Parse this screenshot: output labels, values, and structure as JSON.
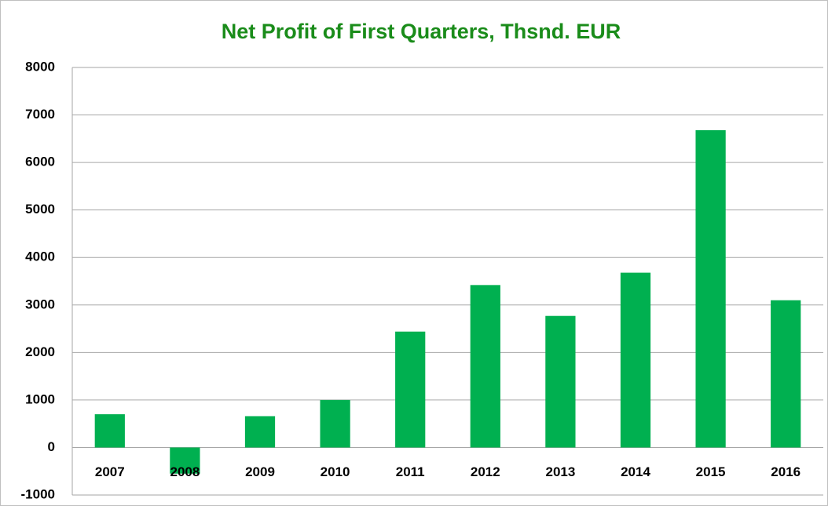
{
  "chart_data": {
    "type": "bar",
    "title": "Net Profit of First Quarters, Thsnd. EUR",
    "categories": [
      "2007",
      "2008",
      "2009",
      "2010",
      "2011",
      "2012",
      "2013",
      "2014",
      "2015",
      "2016"
    ],
    "values": [
      700,
      -550,
      660,
      1000,
      2440,
      3420,
      2770,
      3680,
      6680,
      3100
    ],
    "color": "#00b050",
    "ylim": [
      -1000,
      8000
    ],
    "yticks": [
      -1000,
      0,
      1000,
      2000,
      3000,
      4000,
      5000,
      6000,
      7000,
      8000
    ],
    "grid": true
  }
}
